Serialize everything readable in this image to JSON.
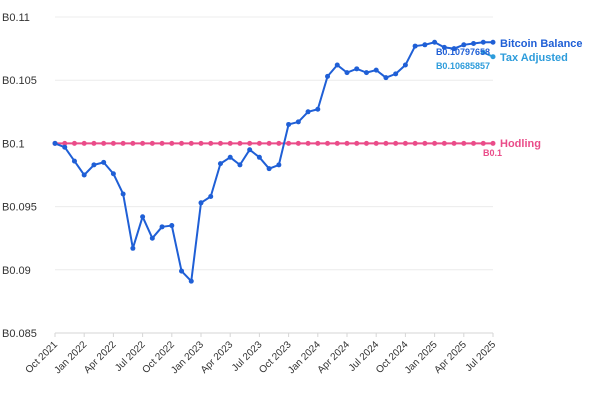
{
  "chart_data": {
    "type": "line",
    "ylim": [
      0.085,
      0.11
    ],
    "y_ticks": [
      0.085,
      0.09,
      0.095,
      0.1,
      0.105,
      0.11
    ],
    "y_tick_labels": [
      "B0.085",
      "B0.09",
      "B0.095",
      "B0.1",
      "B0.105",
      "B0.11"
    ],
    "x_tick_labels": [
      "Oct 2021",
      "Jan 2022",
      "Apr 2022",
      "Jul 2022",
      "Oct 2022",
      "Jan 2023",
      "Apr 2023",
      "Jul 2023",
      "Oct 2023",
      "Jan 2024",
      "Apr 2024",
      "Jul 2024",
      "Oct 2024",
      "Jan 2025",
      "Apr 2025",
      "Jul 2025"
    ],
    "x_range_months": [
      0,
      45
    ],
    "grid": true,
    "series": [
      {
        "name": "Bitcoin Balance",
        "color": "#1f5fd6",
        "end_label": "B0.10797658",
        "points": [
          [
            0,
            0.1
          ],
          [
            1,
            0.0997
          ],
          [
            2,
            0.0986
          ],
          [
            3,
            0.0975
          ],
          [
            4,
            0.0983
          ],
          [
            5,
            0.0985
          ],
          [
            6,
            0.0976
          ],
          [
            7,
            0.096
          ],
          [
            8,
            0.0917
          ],
          [
            9,
            0.0942
          ],
          [
            10,
            0.0925
          ],
          [
            11,
            0.0934
          ],
          [
            12,
            0.0935
          ],
          [
            13,
            0.0899
          ],
          [
            14,
            0.0891
          ],
          [
            15,
            0.0953
          ],
          [
            16,
            0.0958
          ],
          [
            17,
            0.0984
          ],
          [
            18,
            0.0989
          ],
          [
            19,
            0.0983
          ],
          [
            20,
            0.0995
          ],
          [
            21,
            0.0989
          ],
          [
            22,
            0.098
          ],
          [
            23,
            0.0983
          ],
          [
            24,
            0.1015
          ],
          [
            25,
            0.1017
          ],
          [
            26,
            0.1025
          ],
          [
            27,
            0.1027
          ],
          [
            28,
            0.1053
          ],
          [
            29,
            0.1062
          ],
          [
            30,
            0.1056
          ],
          [
            31,
            0.1059
          ],
          [
            32,
            0.1056
          ],
          [
            33,
            0.1058
          ],
          [
            34,
            0.1052
          ],
          [
            35,
            0.1055
          ],
          [
            36,
            0.1062
          ],
          [
            37,
            0.1077
          ],
          [
            38,
            0.1078
          ],
          [
            39,
            0.108
          ],
          [
            40,
            0.1076
          ],
          [
            41,
            0.1075
          ],
          [
            42,
            0.1078
          ],
          [
            43,
            0.1079
          ],
          [
            44,
            0.108
          ],
          [
            45,
            0.108
          ]
        ]
      },
      {
        "name": "Tax Adjusted",
        "color": "#2d9cdb",
        "end_label": "B0.10685857",
        "points": [
          [
            44,
            0.1072
          ],
          [
            45,
            0.10686
          ]
        ]
      },
      {
        "name": "Hodling",
        "color": "#ea4c89",
        "end_label": "B0.1",
        "points": [
          [
            0,
            0.1
          ],
          [
            1,
            0.1
          ],
          [
            2,
            0.1
          ],
          [
            3,
            0.1
          ],
          [
            4,
            0.1
          ],
          [
            5,
            0.1
          ],
          [
            6,
            0.1
          ],
          [
            7,
            0.1
          ],
          [
            8,
            0.1
          ],
          [
            9,
            0.1
          ],
          [
            10,
            0.1
          ],
          [
            11,
            0.1
          ],
          [
            12,
            0.1
          ],
          [
            13,
            0.1
          ],
          [
            14,
            0.1
          ],
          [
            15,
            0.1
          ],
          [
            16,
            0.1
          ],
          [
            17,
            0.1
          ],
          [
            18,
            0.1
          ],
          [
            19,
            0.1
          ],
          [
            20,
            0.1
          ],
          [
            21,
            0.1
          ],
          [
            22,
            0.1
          ],
          [
            23,
            0.1
          ],
          [
            24,
            0.1
          ],
          [
            25,
            0.1
          ],
          [
            26,
            0.1
          ],
          [
            27,
            0.1
          ],
          [
            28,
            0.1
          ],
          [
            29,
            0.1
          ],
          [
            30,
            0.1
          ],
          [
            31,
            0.1
          ],
          [
            32,
            0.1
          ],
          [
            33,
            0.1
          ],
          [
            34,
            0.1
          ],
          [
            35,
            0.1
          ],
          [
            36,
            0.1
          ],
          [
            37,
            0.1
          ],
          [
            38,
            0.1
          ],
          [
            39,
            0.1
          ],
          [
            40,
            0.1
          ],
          [
            41,
            0.1
          ],
          [
            42,
            0.1
          ],
          [
            43,
            0.1
          ],
          [
            44,
            0.1
          ],
          [
            45,
            0.1
          ]
        ]
      }
    ]
  }
}
